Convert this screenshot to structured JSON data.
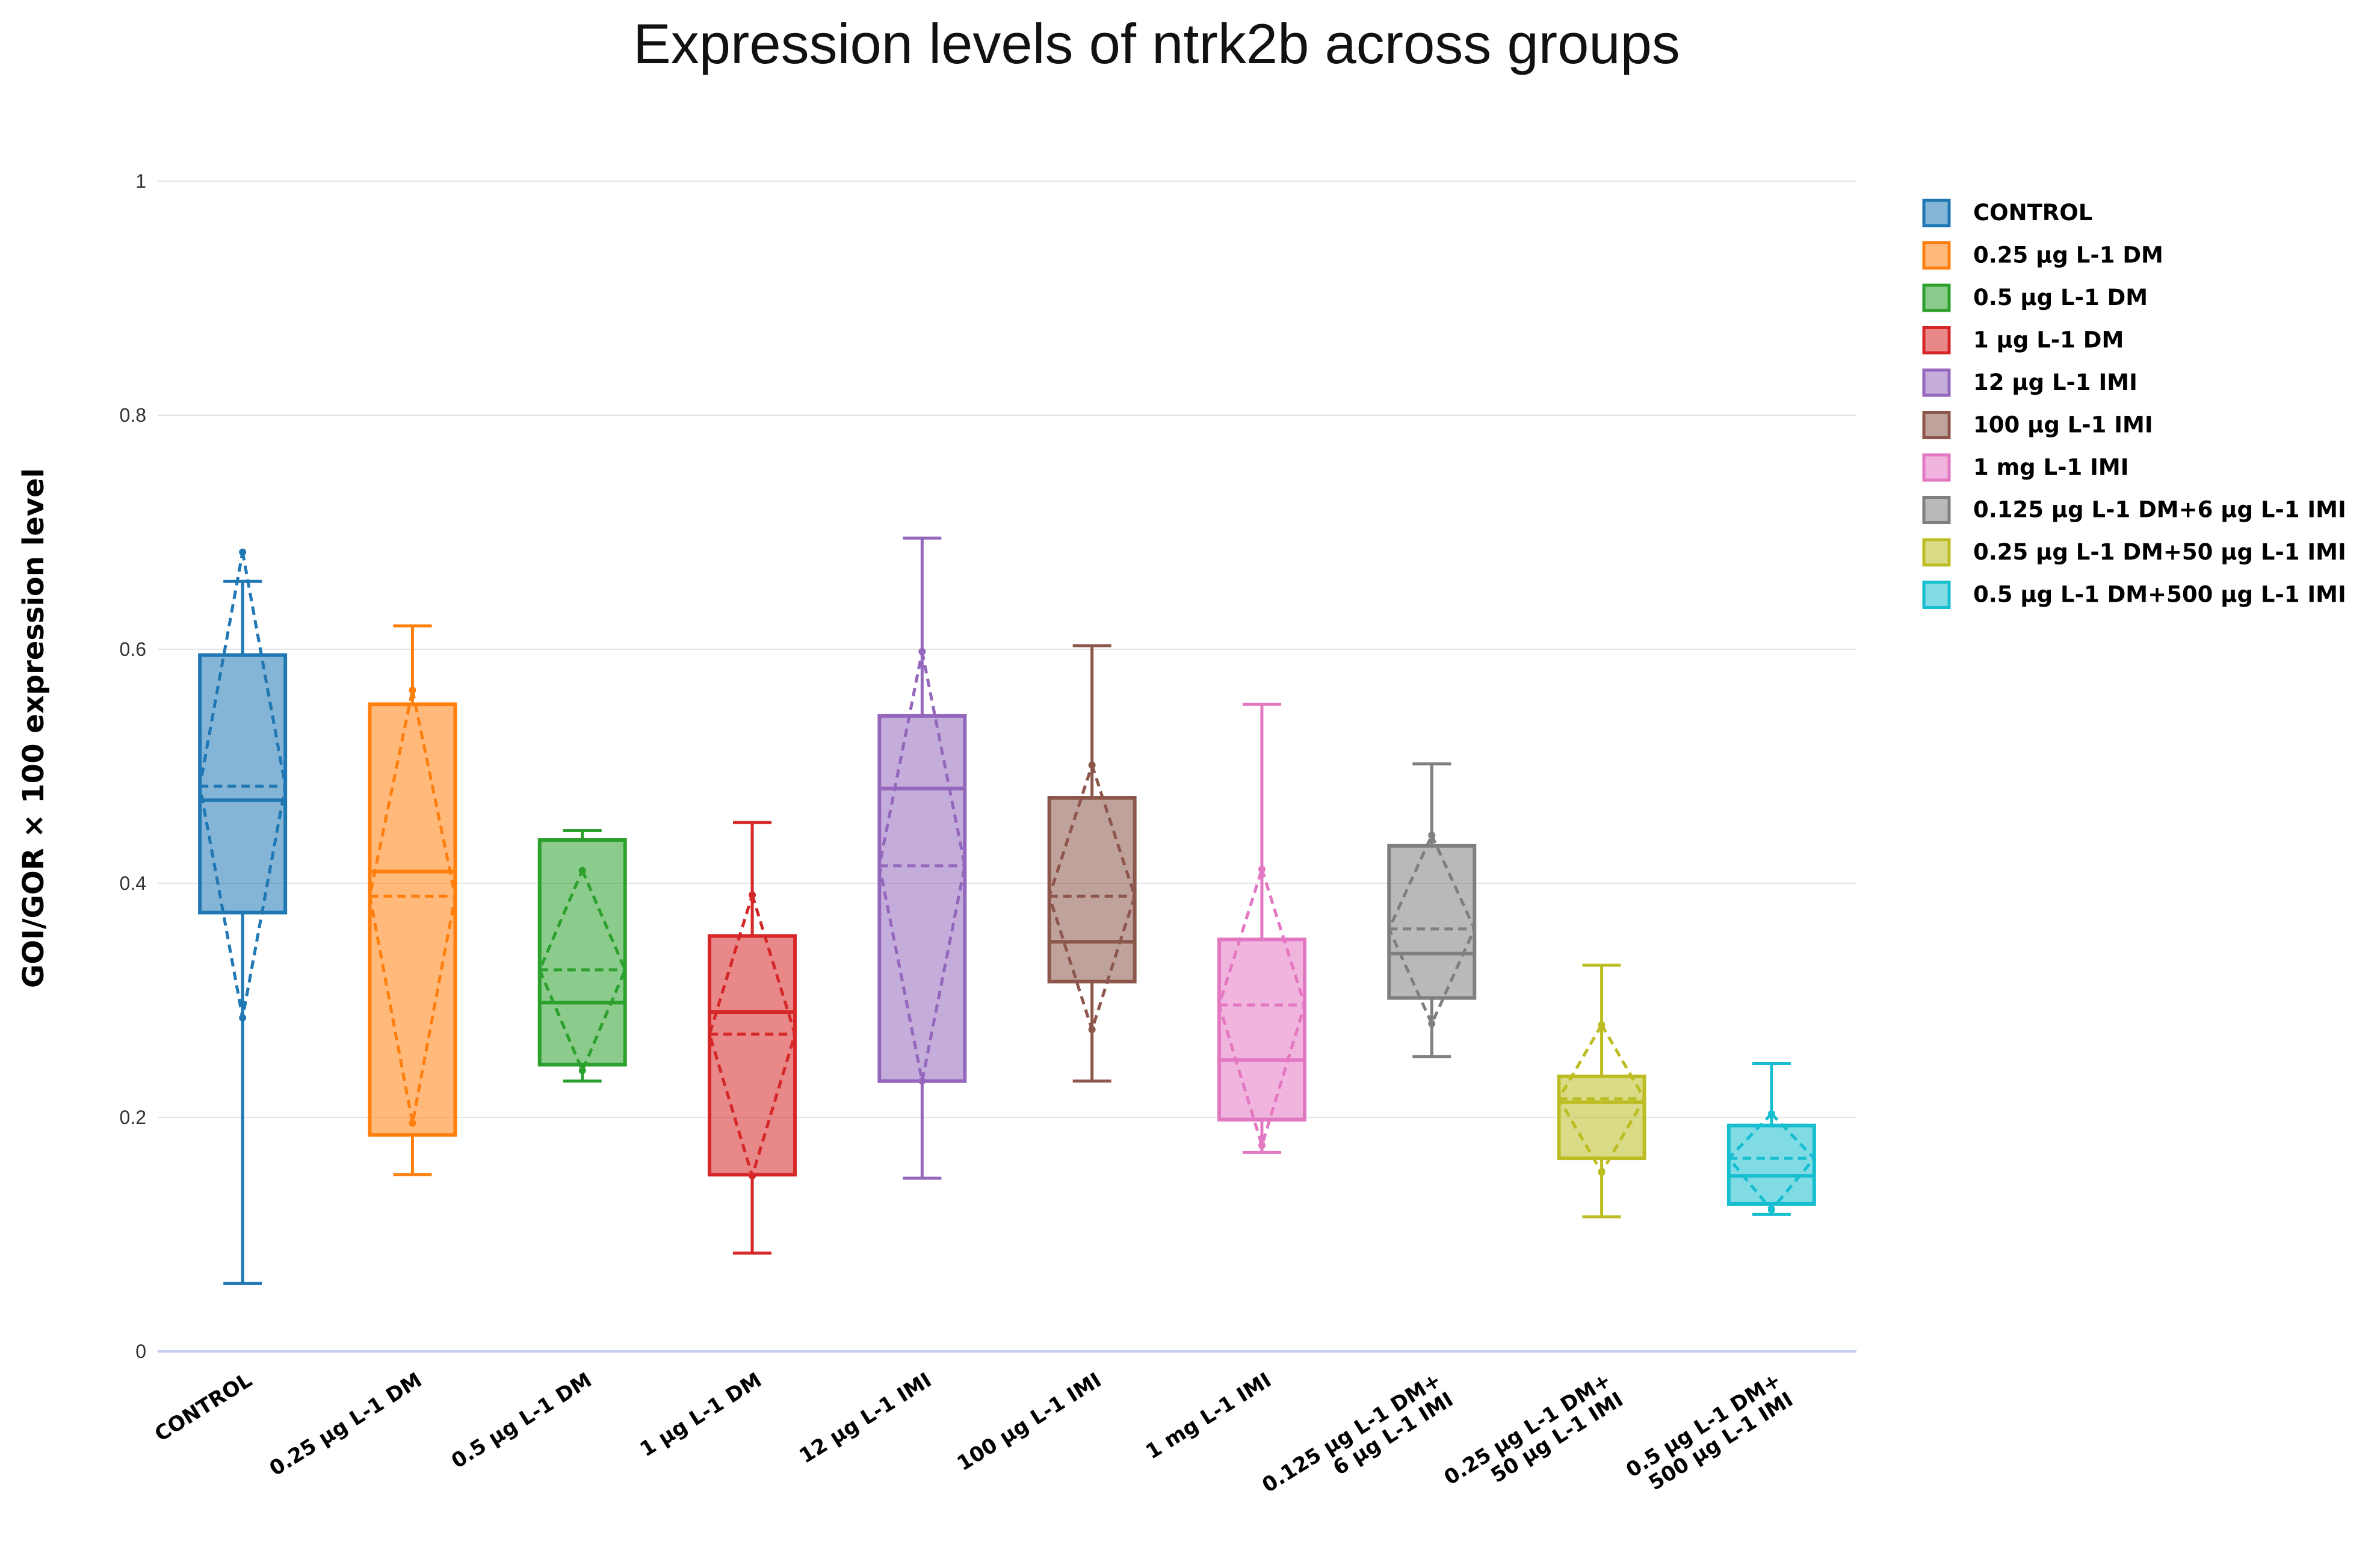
{
  "chart_data": {
    "type": "box",
    "title": "Expression levels of ntrk2b across groups",
    "xlabel": "",
    "ylabel": "GOI/GOR × 100 expression level",
    "ylim": [
      0,
      1
    ],
    "yticks": [
      "0",
      "0.2",
      "0.4",
      "0.6",
      "0.8",
      "1"
    ],
    "ytick_values": [
      0,
      0.2,
      0.4,
      0.6,
      0.8,
      1
    ],
    "grid": true,
    "legend_position": "right",
    "box_fields": [
      "group",
      "min",
      "q1",
      "median",
      "q3",
      "max",
      "mean",
      "mean_minus_sd",
      "mean_plus_sd"
    ],
    "series": [
      {
        "name": "CONTROL",
        "tick": [
          "CONTROL"
        ],
        "color": "#1f77b4",
        "min": 0.058,
        "q1": 0.375,
        "median": 0.471,
        "q3": 0.595,
        "max": 0.658,
        "mean": 0.483,
        "sd_low": 0.285,
        "sd_high": 0.683
      },
      {
        "name": "0.25 µg L-1 DM",
        "tick": [
          "0.25 µg L-1 DM"
        ],
        "color": "#ff7f0e",
        "min": 0.151,
        "q1": 0.185,
        "median": 0.41,
        "q3": 0.553,
        "max": 0.62,
        "mean": 0.389,
        "sd_low": 0.195,
        "sd_high": 0.565
      },
      {
        "name": "0.5 µg L-1 DM",
        "tick": [
          "0.5 µg L-1 DM"
        ],
        "color": "#2ca02c",
        "min": 0.231,
        "q1": 0.245,
        "median": 0.298,
        "q3": 0.437,
        "max": 0.445,
        "mean": 0.326,
        "sd_low": 0.24,
        "sd_high": 0.411
      },
      {
        "name": "1 µg L-1 DM",
        "tick": [
          "1 µg L-1 DM"
        ],
        "color": "#d62728",
        "min": 0.084,
        "q1": 0.151,
        "median": 0.29,
        "q3": 0.355,
        "max": 0.452,
        "mean": 0.271,
        "sd_low": 0.15,
        "sd_high": 0.39
      },
      {
        "name": "12 µg L-1 IMI",
        "tick": [
          "12 µg L-1 IMI"
        ],
        "color": "#9467bd",
        "min": 0.148,
        "q1": 0.231,
        "median": 0.481,
        "q3": 0.543,
        "max": 0.695,
        "mean": 0.415,
        "sd_low": 0.231,
        "sd_high": 0.598
      },
      {
        "name": "100 µg L-1 IMI",
        "tick": [
          "100 µg L-1 IMI"
        ],
        "color": "#8c564b",
        "min": 0.231,
        "q1": 0.316,
        "median": 0.35,
        "q3": 0.473,
        "max": 0.603,
        "mean": 0.389,
        "sd_low": 0.275,
        "sd_high": 0.501
      },
      {
        "name": "1 mg L-1 IMI",
        "tick": [
          "1 mg L-1 IMI"
        ],
        "color": "#e377c2",
        "min": 0.17,
        "q1": 0.198,
        "median": 0.249,
        "q3": 0.352,
        "max": 0.553,
        "mean": 0.296,
        "sd_low": 0.176,
        "sd_high": 0.412
      },
      {
        "name": "0.125 µg L-1 DM+6 µg L-1 IMI",
        "tick": [
          "0.125 µg L-1 DM+",
          "6 µg L-1 IMI"
        ],
        "color": "#7f7f7f",
        "min": 0.252,
        "q1": 0.302,
        "median": 0.34,
        "q3": 0.432,
        "max": 0.502,
        "mean": 0.361,
        "sd_low": 0.28,
        "sd_high": 0.441
      },
      {
        "name": "0.25 µg L-1 DM+50 µg L-1 IMI",
        "tick": [
          "0.25 µg L-1 DM+",
          "50 µg L-1 IMI"
        ],
        "color": "#bcbd22",
        "min": 0.115,
        "q1": 0.165,
        "median": 0.213,
        "q3": 0.235,
        "max": 0.33,
        "mean": 0.216,
        "sd_low": 0.153,
        "sd_high": 0.279
      },
      {
        "name": "0.5 µg L-1 DM+500 µg L-1 IMI",
        "tick": [
          "0.5 µg L-1 DM+",
          "500 µg L-1 IMI"
        ],
        "color": "#17becf",
        "min": 0.117,
        "q1": 0.126,
        "median": 0.15,
        "q3": 0.193,
        "max": 0.246,
        "mean": 0.165,
        "sd_low": 0.121,
        "sd_high": 0.203
      }
    ]
  }
}
